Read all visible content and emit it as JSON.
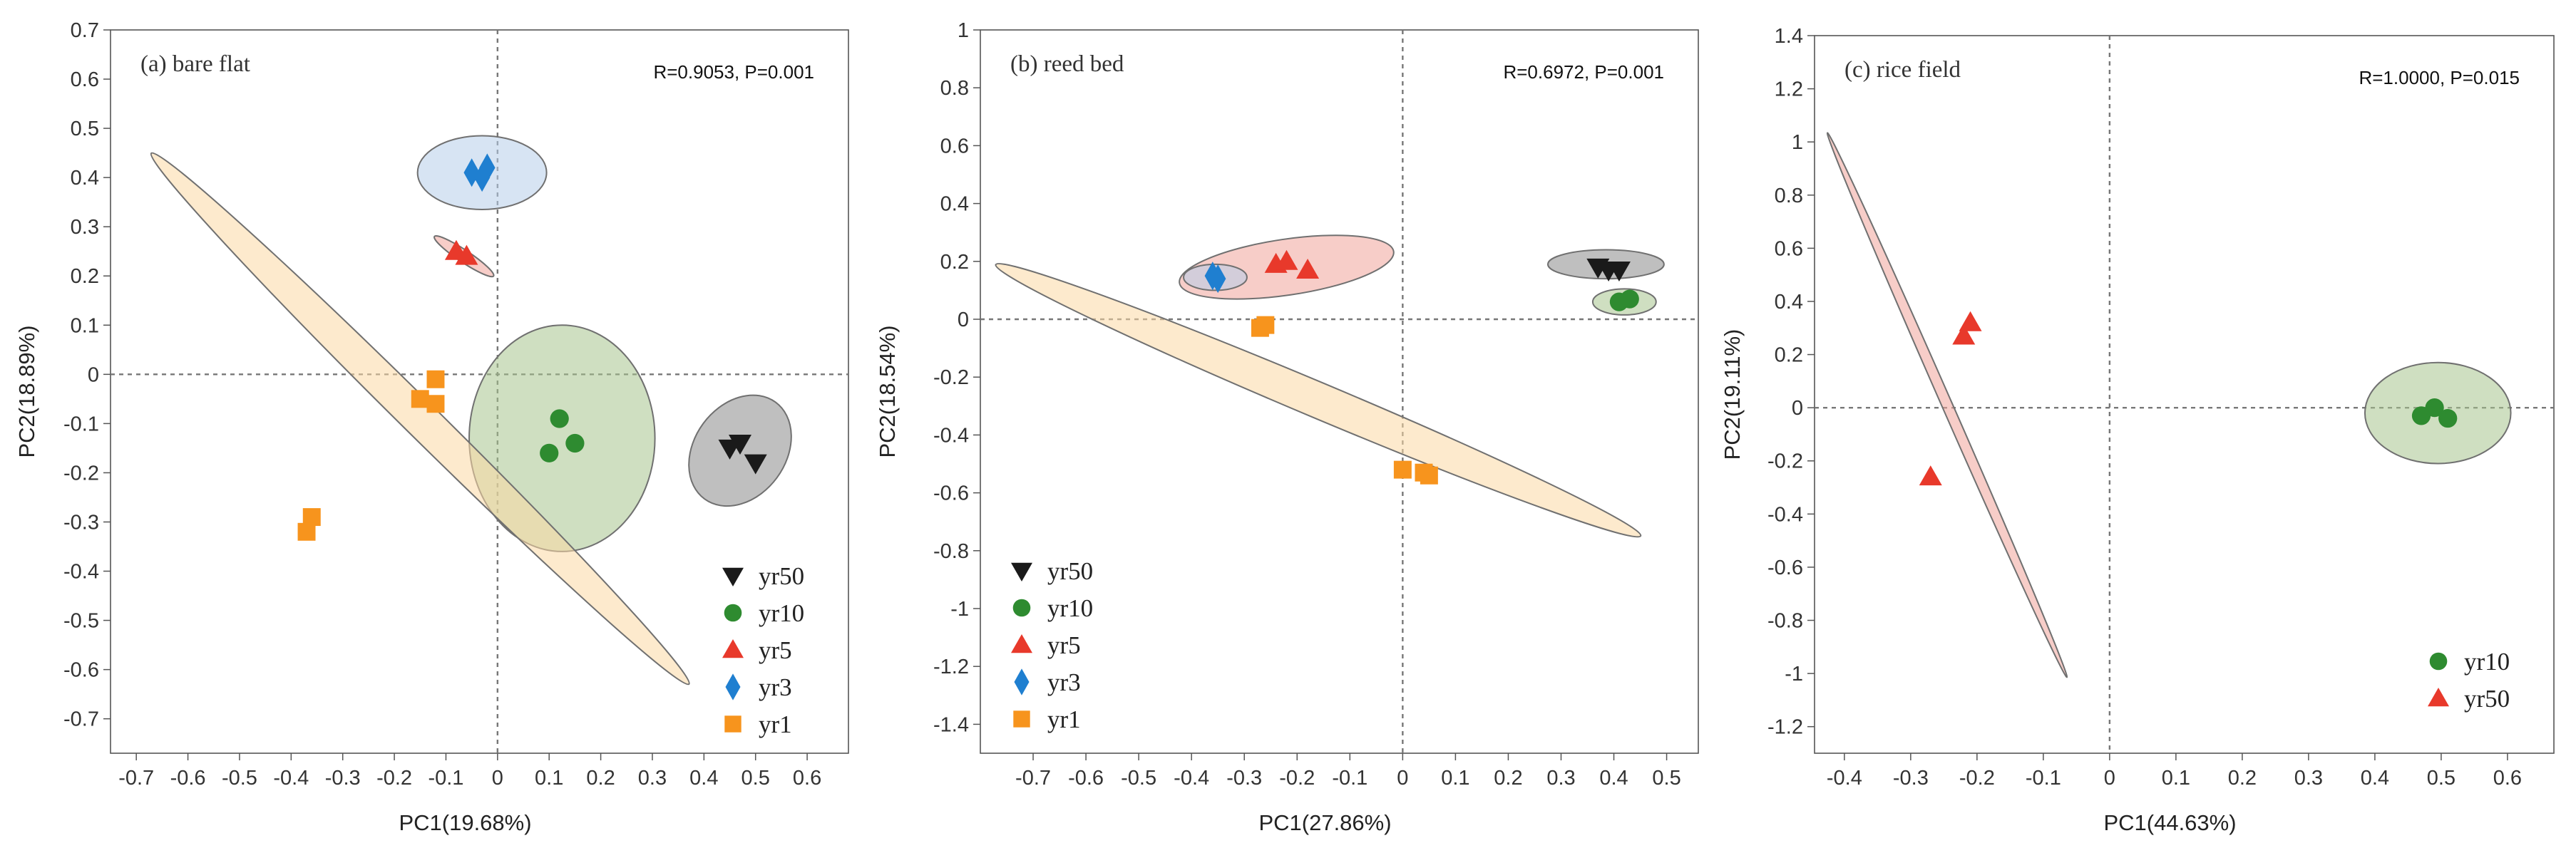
{
  "figure": {
    "series_styles": {
      "yr50": {
        "marker": "triangle-down",
        "color": "#1a1a1a",
        "ellipse_fill": "#8a8a8a"
      },
      "yr10": {
        "marker": "circle",
        "color": "#2e8b30",
        "ellipse_fill": "#a8c58e"
      },
      "yr5": {
        "marker": "triangle-up",
        "color": "#e8392b",
        "ellipse_fill": "#f0a49a"
      },
      "yr3": {
        "marker": "diamond",
        "color": "#1f7fd0",
        "ellipse_fill": "#b6cdea"
      },
      "yr1": {
        "marker": "square",
        "color": "#f7941d",
        "ellipse_fill": "#fbd8a4"
      }
    }
  },
  "chart_data": [
    {
      "type": "scatter",
      "title": "(a) bare flat",
      "stat": "R=0.9053, P=0.001",
      "xlabel": "PC1(19.68%)",
      "ylabel": "PC2(18.89%)",
      "xlim": [
        -0.75,
        0.68
      ],
      "ylim": [
        -0.77,
        0.7
      ],
      "xticks": [
        -0.7,
        -0.6,
        -0.5,
        -0.4,
        -0.3,
        -0.2,
        -0.1,
        0,
        0.1,
        0.2,
        0.3,
        0.4,
        0.5,
        0.6
      ],
      "yticks": [
        -0.7,
        -0.6,
        -0.5,
        -0.4,
        -0.3,
        -0.2,
        -0.1,
        0,
        0.1,
        0.2,
        0.3,
        0.4,
        0.5,
        0.6,
        0.7
      ],
      "legend": [
        "yr50",
        "yr10",
        "yr5",
        "yr3",
        "yr1"
      ],
      "legend_position": "bottom-right",
      "series": [
        {
          "name": "yr50",
          "points": [
            [
              0.47,
              -0.14
            ],
            [
              0.5,
              -0.18
            ],
            [
              0.45,
              -0.15
            ]
          ],
          "ellipse": {
            "cx": 0.47,
            "cy": -0.155,
            "rx": 0.12,
            "ry": 0.09,
            "angle": 55
          }
        },
        {
          "name": "yr10",
          "points": [
            [
              0.12,
              -0.09
            ],
            [
              0.15,
              -0.14
            ],
            [
              0.1,
              -0.16
            ]
          ],
          "ellipse": {
            "cx": 0.125,
            "cy": -0.13,
            "rx": 0.18,
            "ry": 0.23,
            "angle": 0
          }
        },
        {
          "name": "yr5",
          "points": [
            [
              -0.08,
              0.25
            ],
            [
              -0.06,
              0.24
            ]
          ],
          "ellipse": {
            "cx": -0.065,
            "cy": 0.24,
            "rx": 0.07,
            "ry": 0.012,
            "angle": -35
          }
        },
        {
          "name": "yr3",
          "points": [
            [
              -0.05,
              0.41
            ],
            [
              -0.02,
              0.42
            ],
            [
              -0.03,
              0.4
            ]
          ],
          "ellipse": {
            "cx": -0.03,
            "cy": 0.41,
            "rx": 0.125,
            "ry": 0.075,
            "angle": 0
          }
        },
        {
          "name": "yr1",
          "points": [
            [
              -0.12,
              -0.01
            ],
            [
              -0.15,
              -0.05
            ],
            [
              -0.12,
              -0.06
            ],
            [
              -0.36,
              -0.29
            ],
            [
              -0.37,
              -0.32
            ]
          ],
          "ellipse": {
            "cx": -0.15,
            "cy": -0.09,
            "rx": 0.75,
            "ry": 0.035,
            "angle": -46
          }
        }
      ]
    },
    {
      "type": "scatter",
      "title": "(b) reed bed",
      "stat": "R=0.6972, P=0.001",
      "xlabel": "PC1(27.86%)",
      "ylabel": "PC2(18.54%)",
      "xlim": [
        -0.8,
        0.56
      ],
      "ylim": [
        -1.5,
        1.0
      ],
      "xticks": [
        -0.7,
        -0.6,
        -0.5,
        -0.4,
        -0.3,
        -0.2,
        -0.1,
        0,
        0.1,
        0.2,
        0.3,
        0.4,
        0.5
      ],
      "yticks": [
        -1.4,
        -1.2,
        -1,
        -0.8,
        -0.6,
        -0.4,
        -0.2,
        0,
        0.2,
        0.4,
        0.6,
        0.8,
        1
      ],
      "legend": [
        "yr50",
        "yr10",
        "yr5",
        "yr3",
        "yr1"
      ],
      "legend_position": "bottom-left",
      "series": [
        {
          "name": "yr50",
          "points": [
            [
              0.37,
              0.18
            ],
            [
              0.39,
              0.17
            ],
            [
              0.41,
              0.17
            ]
          ],
          "ellipse": {
            "cx": 0.385,
            "cy": 0.19,
            "rx": 0.11,
            "ry": 0.05,
            "angle": 0
          }
        },
        {
          "name": "yr10",
          "points": [
            [
              0.41,
              0.06
            ],
            [
              0.43,
              0.07
            ]
          ],
          "ellipse": {
            "cx": 0.42,
            "cy": 0.06,
            "rx": 0.06,
            "ry": 0.045,
            "angle": 0
          }
        },
        {
          "name": "yr5",
          "points": [
            [
              -0.24,
              0.19
            ],
            [
              -0.22,
              0.2
            ],
            [
              -0.18,
              0.17
            ]
          ],
          "ellipse": {
            "cx": -0.22,
            "cy": 0.18,
            "rx": 0.21,
            "ry": 0.09,
            "angle": 15
          }
        },
        {
          "name": "yr3",
          "points": [
            [
              -0.36,
              0.15
            ],
            [
              -0.35,
              0.14
            ]
          ],
          "ellipse": {
            "cx": -0.355,
            "cy": 0.145,
            "rx": 0.06,
            "ry": 0.045,
            "angle": 0
          }
        },
        {
          "name": "yr1",
          "points": [
            [
              -0.27,
              -0.03
            ],
            [
              -0.26,
              -0.02
            ],
            [
              0.0,
              -0.52
            ],
            [
              0.04,
              -0.53
            ],
            [
              0.05,
              -0.54
            ]
          ],
          "ellipse": {
            "cx": -0.16,
            "cy": -0.28,
            "rx": 0.77,
            "ry": 0.045,
            "angle": -37.5
          }
        }
      ]
    },
    {
      "type": "scatter",
      "title": "(c) rice field",
      "stat": "R=1.0000, P=0.015",
      "xlabel": "PC1(44.63%)",
      "ylabel": "PC2(19.11%)",
      "xlim": [
        -0.445,
        0.67
      ],
      "ylim": [
        -1.3,
        1.4
      ],
      "xticks": [
        -0.4,
        -0.3,
        -0.2,
        -0.1,
        0,
        0.1,
        0.2,
        0.3,
        0.4,
        0.5,
        0.6
      ],
      "yticks": [
        -1.2,
        -1,
        -0.8,
        -0.6,
        -0.4,
        -0.2,
        0,
        0.2,
        0.4,
        0.6,
        0.8,
        1,
        1.2,
        1.4
      ],
      "legend": [
        "yr10",
        "yr50"
      ],
      "legend_position": "bottom-right",
      "series": [
        {
          "name": "yr10",
          "style": "yr10",
          "points": [
            [
              0.49,
              0.0
            ],
            [
              0.47,
              -0.03
            ],
            [
              0.51,
              -0.04
            ]
          ],
          "ellipse": {
            "cx": 0.495,
            "cy": -0.02,
            "rx": 0.11,
            "ry": 0.19,
            "angle": 0
          }
        },
        {
          "name": "yr50",
          "style": "yr5",
          "points": [
            [
              -0.21,
              0.32
            ],
            [
              -0.22,
              0.27
            ],
            [
              -0.27,
              -0.26
            ]
          ],
          "ellipse": {
            "cx": -0.245,
            "cy": 0.01,
            "rx": 1.04,
            "ry": 0.008,
            "angle": -80
          }
        }
      ]
    }
  ]
}
